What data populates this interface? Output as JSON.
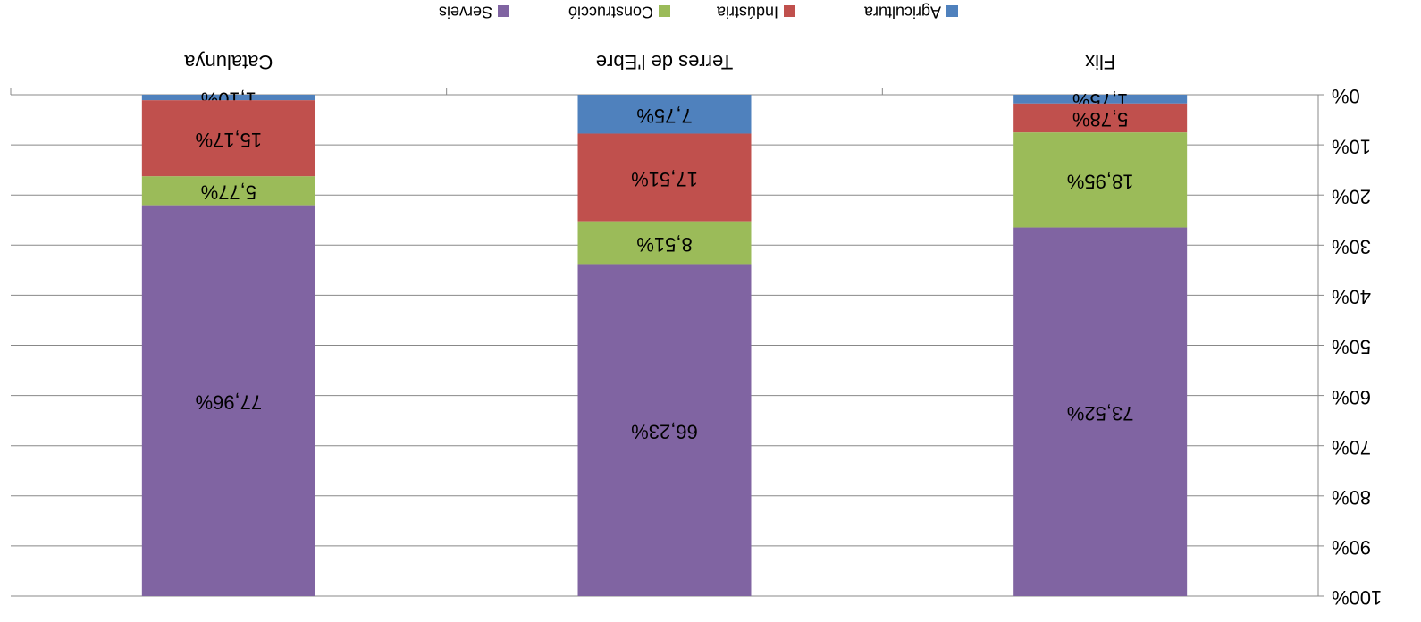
{
  "chart_data": {
    "type": "stacked_bar",
    "categories": [
      "Flix",
      "Terres de l'Ebre",
      "Catalunya"
    ],
    "series": [
      {
        "name": "Agricultura",
        "color": "#4f81bd",
        "values": [
          1.75,
          7.75,
          1.1
        ],
        "value_labels": [
          "1,75%",
          "7,75%",
          "1,10%"
        ]
      },
      {
        "name": "Indústria",
        "color": "#c0504d",
        "values": [
          5.78,
          17.51,
          15.17
        ],
        "value_labels": [
          "5,78%",
          "17,51%",
          "15,17%"
        ]
      },
      {
        "name": "Construcció",
        "color": "#9bbb59",
        "values": [
          18.95,
          8.51,
          5.77
        ],
        "value_labels": [
          "18,95%",
          "8,51%",
          "5,77%"
        ]
      },
      {
        "name": "Serveis",
        "color": "#8064a2",
        "values": [
          73.52,
          66.23,
          77.96
        ],
        "value_labels": [
          "73,52%",
          "66,23%",
          "77,96%"
        ]
      }
    ],
    "ylim": [
      0,
      100
    ],
    "yticks": [
      {
        "value": 0,
        "label": "0%"
      },
      {
        "value": 10,
        "label": "10%"
      },
      {
        "value": 20,
        "label": "20%"
      },
      {
        "value": 30,
        "label": "30%"
      },
      {
        "value": 40,
        "label": "40%"
      },
      {
        "value": 50,
        "label": "50%"
      },
      {
        "value": 60,
        "label": "60%"
      },
      {
        "value": 70,
        "label": "70%"
      },
      {
        "value": 80,
        "label": "80%"
      },
      {
        "value": 90,
        "label": "90%"
      },
      {
        "value": 100,
        "label": "100%"
      }
    ],
    "grid": true,
    "legend": "bottom",
    "rotated": 180
  }
}
